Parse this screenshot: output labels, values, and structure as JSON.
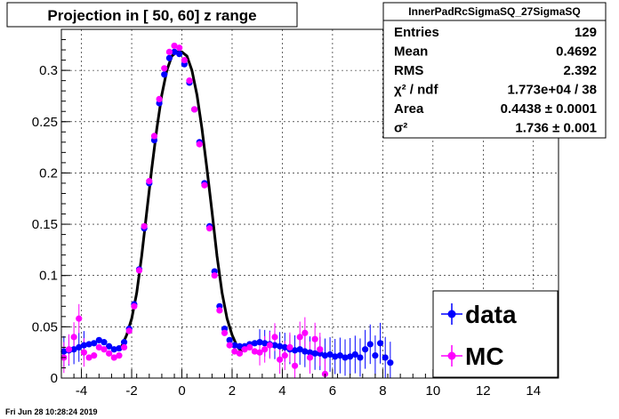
{
  "chart_data": {
    "type": "scatter",
    "title": "Projection in [  50,  60] z range",
    "xlabel": "",
    "ylabel": "",
    "xlim": [
      -4.8,
      15.0
    ],
    "ylim": [
      0,
      0.34
    ],
    "x_ticks": [
      -4,
      -2,
      0,
      2,
      4,
      6,
      8,
      10,
      12,
      14
    ],
    "y_ticks": [
      0,
      0.05,
      0.1,
      0.15,
      0.2,
      0.25,
      0.3
    ],
    "grid": true,
    "legend_position": "bottom-right",
    "series": [
      {
        "name": "data",
        "color": "#0000ff",
        "marker": "circle",
        "x": [
          -4.7,
          -4.5,
          -4.3,
          -4.1,
          -3.9,
          -3.7,
          -3.5,
          -3.3,
          -3.1,
          -2.9,
          -2.7,
          -2.5,
          -2.3,
          -2.1,
          -1.9,
          -1.7,
          -1.5,
          -1.3,
          -1.1,
          -0.9,
          -0.7,
          -0.5,
          -0.3,
          -0.1,
          0.1,
          0.3,
          0.5,
          0.7,
          0.9,
          1.1,
          1.3,
          1.5,
          1.7,
          1.9,
          2.1,
          2.3,
          2.5,
          2.7,
          2.9,
          3.1,
          3.3,
          3.5,
          3.7,
          3.9,
          4.1,
          4.3,
          4.5,
          4.7,
          4.9,
          5.1,
          5.3,
          5.5,
          5.7,
          5.9,
          6.1,
          6.3,
          6.5,
          6.7,
          6.9,
          7.1,
          7.3,
          7.5,
          7.7,
          7.9,
          8.1,
          8.3
        ],
        "values": [
          0.026,
          0.027,
          0.028,
          0.03,
          0.032,
          0.033,
          0.034,
          0.037,
          0.035,
          0.031,
          0.028,
          0.029,
          0.035,
          0.048,
          0.072,
          0.106,
          0.146,
          0.19,
          0.232,
          0.268,
          0.296,
          0.312,
          0.318,
          0.316,
          0.306,
          0.288,
          0.262,
          0.23,
          0.19,
          0.148,
          0.104,
          0.07,
          0.048,
          0.037,
          0.032,
          0.031,
          0.031,
          0.033,
          0.034,
          0.035,
          0.034,
          0.033,
          0.032,
          0.031,
          0.03,
          0.028,
          0.027,
          0.028,
          0.026,
          0.025,
          0.024,
          0.024,
          0.022,
          0.023,
          0.021,
          0.022,
          0.02,
          0.021,
          0.023,
          0.02,
          0.028,
          0.033,
          0.022,
          0.034,
          0.02,
          0.015
        ]
      },
      {
        "name": "MC",
        "color": "#ff00ff",
        "marker": "circle",
        "x": [
          -4.7,
          -4.5,
          -4.3,
          -4.1,
          -3.9,
          -3.7,
          -3.5,
          -3.3,
          -3.1,
          -2.9,
          -2.7,
          -2.5,
          -2.3,
          -2.1,
          -1.9,
          -1.7,
          -1.5,
          -1.3,
          -1.1,
          -0.9,
          -0.7,
          -0.5,
          -0.3,
          -0.1,
          0.1,
          0.3,
          0.5,
          0.7,
          0.9,
          1.1,
          1.3,
          1.5,
          1.7,
          1.9,
          2.1,
          2.3,
          2.5,
          2.7,
          2.9,
          3.1,
          3.3,
          3.5,
          3.7,
          3.9,
          4.1,
          4.3,
          4.5,
          4.7,
          4.9,
          5.1,
          5.3,
          5.5,
          5.7
        ],
        "values": [
          0.02,
          0.028,
          0.04,
          0.058,
          0.025,
          0.02,
          0.022,
          0.03,
          0.028,
          0.024,
          0.02,
          0.022,
          0.03,
          0.046,
          0.07,
          0.105,
          0.148,
          0.192,
          0.236,
          0.272,
          0.302,
          0.318,
          0.324,
          0.322,
          0.31,
          0.29,
          0.262,
          0.228,
          0.188,
          0.146,
          0.1,
          0.066,
          0.044,
          0.032,
          0.026,
          0.024,
          0.028,
          0.03,
          0.026,
          0.025,
          0.028,
          0.032,
          0.04,
          0.018,
          0.022,
          0.03,
          0.012,
          0.04,
          0.044,
          0.02,
          0.038,
          0.028,
          0.004
        ]
      },
      {
        "name": "",
        "type": "line",
        "color": "#000000",
        "x": [
          -2.4,
          -2.2,
          -2.0,
          -1.8,
          -1.6,
          -1.4,
          -1.2,
          -1.0,
          -0.8,
          -0.6,
          -0.4,
          -0.2,
          0.0,
          0.2,
          0.4,
          0.6,
          0.8,
          1.0,
          1.2,
          1.4,
          1.6,
          1.8,
          2.0,
          2.2,
          2.4
        ],
        "values": [
          0.031,
          0.042,
          0.058,
          0.083,
          0.119,
          0.162,
          0.204,
          0.243,
          0.276,
          0.3,
          0.314,
          0.318,
          0.318,
          0.314,
          0.3,
          0.276,
          0.243,
          0.204,
          0.162,
          0.119,
          0.083,
          0.058,
          0.042,
          0.031,
          0.025
        ]
      }
    ]
  },
  "stats_box": {
    "title": "InnerPadRcSigmaSQ_27SigmaSQ",
    "rows": [
      {
        "label": "Entries",
        "value": "129"
      },
      {
        "label": "Mean",
        "value": "0.4692"
      },
      {
        "label": "RMS",
        "value": "2.392"
      },
      {
        "label": "χ² / ndf",
        "value": "1.773e+04 / 38"
      },
      {
        "label": "Area",
        "value": "0.4438  ± 0.0001"
      },
      {
        "label": "σ²",
        "value": "1.736  ± 0.001"
      }
    ]
  },
  "legend": {
    "items": [
      {
        "label": "data",
        "color": "#0000ff"
      },
      {
        "label": "MC",
        "color": "#ff00ff"
      }
    ]
  },
  "footer": {
    "timestamp": "Fri Jun 28 10:28:24 2019"
  }
}
